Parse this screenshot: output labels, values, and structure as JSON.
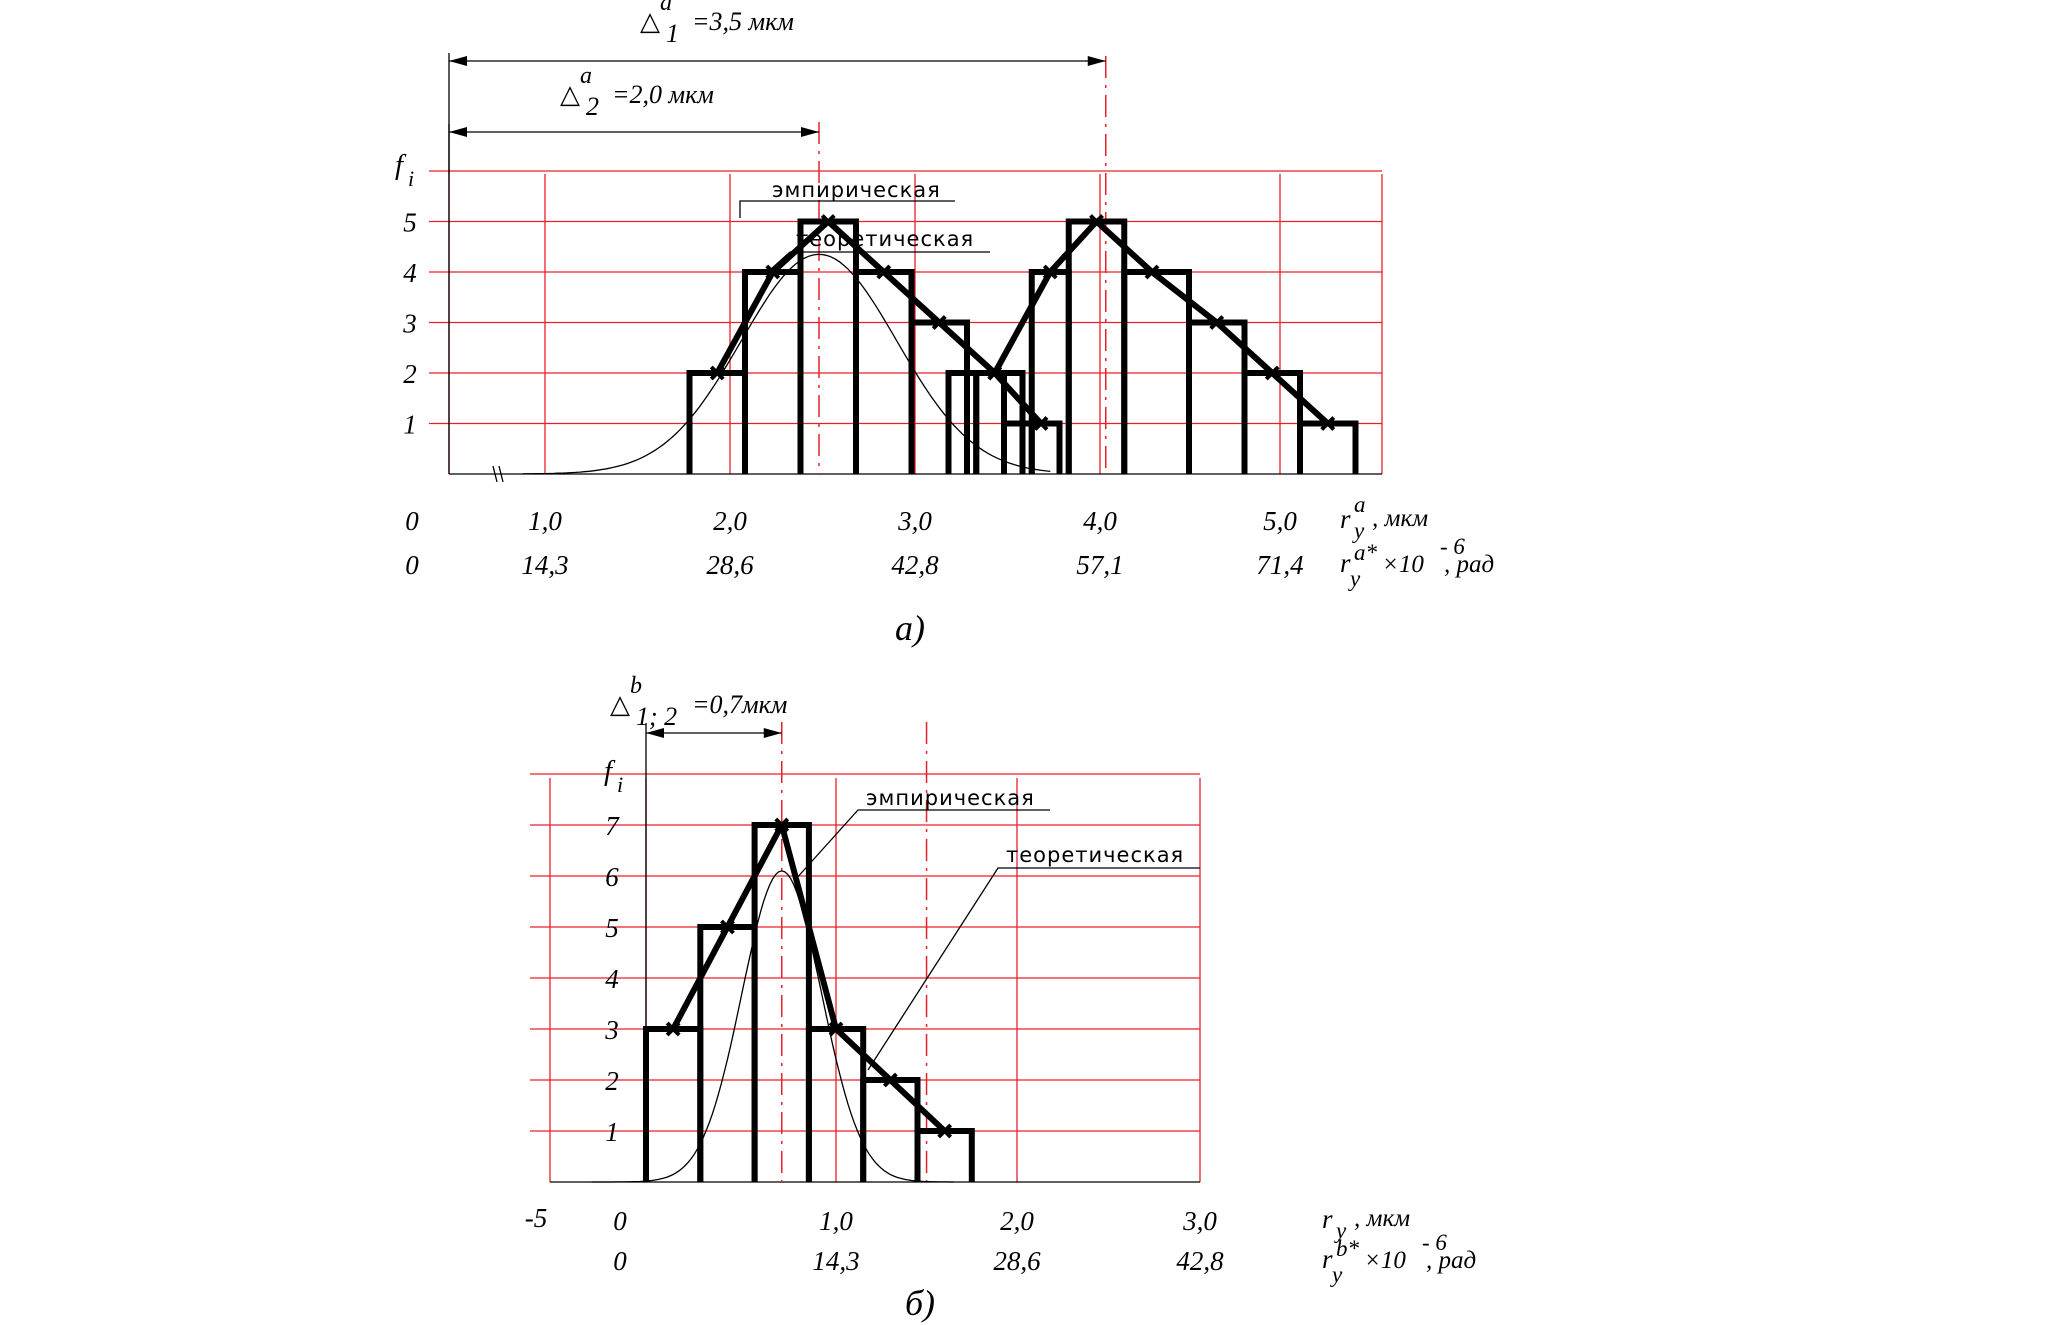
{
  "chart_data": [
    {
      "id": "a",
      "type": "bar",
      "caption": "а)",
      "ylabel": "f",
      "ylabel_sub": "i",
      "yticks": [
        "1",
        "2",
        "3",
        "4",
        "5"
      ],
      "ylim": [
        0,
        6
      ],
      "xlim": [
        0,
        5.2
      ],
      "x_axis_primary": {
        "origin": "0",
        "ticks": [
          {
            "v": 1.0,
            "label": "1,0"
          },
          {
            "v": 2.0,
            "label": "2,0"
          },
          {
            "v": 3.0,
            "label": "3,0"
          },
          {
            "v": 4.0,
            "label": "4,0"
          },
          {
            "v": 5.0,
            "label": "5,0"
          }
        ],
        "label_main": "r",
        "label_sup": "a",
        "label_sub": "y",
        "label_unit": ", мкм"
      },
      "x_axis_secondary": {
        "origin": "0",
        "ticks": [
          {
            "v": 1.0,
            "label": "14,3"
          },
          {
            "v": 2.0,
            "label": "28,6"
          },
          {
            "v": 3.0,
            "label": "42,8"
          },
          {
            "v": 4.0,
            "label": "57,1"
          },
          {
            "v": 5.0,
            "label": "71,4"
          }
        ],
        "label_main": "r",
        "label_sup": "a*",
        "label_sub": "y",
        "label_mult": "×10",
        "label_exp": "- 6",
        "label_unit": ", рад"
      },
      "series": [
        {
          "name": "эмпирическая",
          "group": 1,
          "bins": [
            {
              "x0": 1.3,
              "x1": 1.6,
              "f": 2
            },
            {
              "x0": 1.6,
              "x1": 1.9,
              "f": 4
            },
            {
              "x0": 1.9,
              "x1": 2.2,
              "f": 5
            },
            {
              "x0": 2.2,
              "x1": 2.5,
              "f": 4
            },
            {
              "x0": 2.5,
              "x1": 2.8,
              "f": 3
            },
            {
              "x0": 2.8,
              "x1": 3.1,
              "f": 2
            },
            {
              "x0": 3.1,
              "x1": 3.3,
              "f": 1
            }
          ]
        },
        {
          "name": "",
          "group": 2,
          "bins": [
            {
              "x0": 2.7,
              "x1": 2.85,
              "f": 2
            },
            {
              "x0": 2.85,
              "x1": 3.0,
              "f": 2
            },
            {
              "x0": 3.0,
              "x1": 3.15,
              "f": 1
            },
            {
              "x0": 3.15,
              "x1": 3.35,
              "f": 4
            },
            {
              "x0": 3.35,
              "x1": 3.65,
              "f": 5
            },
            {
              "x0": 3.65,
              "x1": 4.0,
              "f": 4
            },
            {
              "x0": 4.0,
              "x1": 4.3,
              "f": 3
            },
            {
              "x0": 4.3,
              "x1": 4.6,
              "f": 2
            },
            {
              "x0": 4.6,
              "x1": 4.9,
              "f": 1
            }
          ]
        }
      ],
      "polygons": [
        [
          [
            1.45,
            2
          ],
          [
            1.75,
            4
          ],
          [
            2.05,
            5
          ],
          [
            2.35,
            4
          ],
          [
            2.65,
            3
          ],
          [
            2.95,
            2
          ],
          [
            3.2,
            1
          ]
        ],
        [
          [
            2.95,
            2
          ],
          [
            3.25,
            4
          ],
          [
            3.5,
            5
          ],
          [
            3.8,
            4
          ],
          [
            4.15,
            3
          ],
          [
            4.45,
            2
          ],
          [
            4.75,
            1
          ]
        ]
      ],
      "theoretical": {
        "name": "теоретическая",
        "mean": 2.0,
        "sigma": 0.42,
        "peak": 4.35,
        "range": [
          0.4,
          3.25
        ]
      },
      "dashed_lines_x": [
        2.0,
        3.55
      ],
      "annotations": [
        {
          "symbol": "△",
          "sup": "a",
          "sub": "1",
          "text": "=3,5 мкм",
          "x_from": 0,
          "x_to": 3.55
        },
        {
          "symbol": "△",
          "sup": "a",
          "sub": "2",
          "text": "=2,0 мкм",
          "x_from": 0,
          "x_to": 2.0
        }
      ]
    },
    {
      "id": "b",
      "type": "bar",
      "caption": "б)",
      "ylabel": "f",
      "ylabel_sub": "i",
      "yticks": [
        "1",
        "2",
        "3",
        "4",
        "5",
        "6",
        "7"
      ],
      "ylim": [
        0,
        8
      ],
      "xlim": [
        -0.3,
        3.3
      ],
      "x_axis_primary": {
        "origin": "0",
        "extra_left": "-5",
        "ticks": [
          {
            "v": 1.0,
            "label": "1,0"
          },
          {
            "v": 2.0,
            "label": "2,0"
          },
          {
            "v": 3.0,
            "label": "3,0"
          }
        ],
        "label_main": "r",
        "label_sub": "y",
        "label_unit": ", мкм"
      },
      "x_axis_secondary": {
        "origin": "0",
        "ticks": [
          {
            "v": 1.0,
            "label": "14,3"
          },
          {
            "v": 2.0,
            "label": "28,6"
          },
          {
            "v": 3.0,
            "label": "42,8"
          }
        ],
        "label_main": "r",
        "label_sup": "b*",
        "label_sub": "y",
        "label_mult": "×10",
        "label_exp": "- 6",
        "label_unit": ", рад"
      },
      "series": [
        {
          "name": "эмпирическая",
          "group": 1,
          "bins": [
            {
              "x0": 0.0,
              "x1": 0.3,
              "f": 3
            },
            {
              "x0": 0.3,
              "x1": 0.6,
              "f": 5
            },
            {
              "x0": 0.6,
              "x1": 0.9,
              "f": 7
            },
            {
              "x0": 0.9,
              "x1": 1.2,
              "f": 3
            },
            {
              "x0": 1.2,
              "x1": 1.5,
              "f": 2
            },
            {
              "x0": 1.5,
              "x1": 1.8,
              "f": 1
            }
          ]
        }
      ],
      "polygons": [
        [
          [
            0.15,
            3
          ],
          [
            0.45,
            5
          ],
          [
            0.75,
            7
          ],
          [
            1.05,
            3
          ],
          [
            1.35,
            2
          ],
          [
            1.65,
            1
          ]
        ]
      ],
      "theoretical": {
        "name": "теоретическая",
        "mean": 0.75,
        "sigma": 0.22,
        "peak": 6.1,
        "range": [
          -0.3,
          1.7
        ]
      },
      "dashed_lines_x": [
        0.75,
        1.55
      ],
      "annotations": [
        {
          "symbol": "△",
          "sup": "b",
          "sub": "1; 2",
          "text": "=0,7мкм",
          "x_from": 0.0,
          "x_to": 0.75
        }
      ]
    }
  ]
}
